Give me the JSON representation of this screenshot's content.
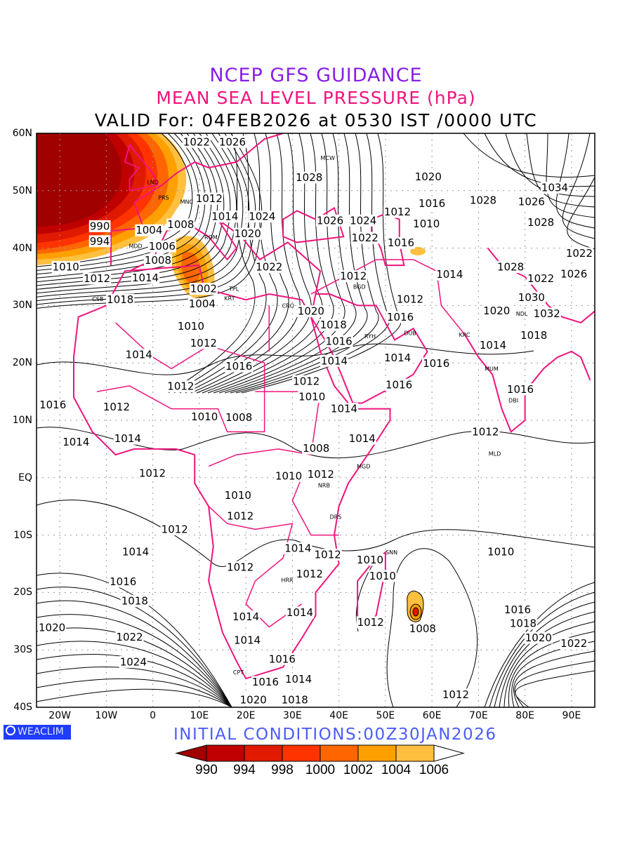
{
  "titles": {
    "line1": "NCEP GFS GUIDANCE",
    "line2": "MEAN SEA LEVEL PRESSURE (hPa)",
    "line3": "VALID For: 04FEB2026 at 0530 IST /0000 UTC"
  },
  "axes": {
    "lat_labels": [
      "60N",
      "50N",
      "40N",
      "30N",
      "20N",
      "10N",
      "EQ",
      "10S",
      "20S",
      "30S",
      "40S"
    ],
    "lon_labels": [
      "20W",
      "10W",
      "0",
      "10E",
      "20E",
      "30E",
      "40E",
      "50E",
      "60E",
      "70E",
      "80E",
      "90E"
    ],
    "lon_range": [
      -25,
      95
    ],
    "lat_range": [
      -40,
      60
    ]
  },
  "logo": "WEACLIM",
  "initial_conditions": "INITIAL  CONDITIONS:00Z30JAN2026",
  "colorbar": {
    "labels": [
      "990",
      "994",
      "998",
      "1000",
      "1002",
      "1004",
      "1006"
    ],
    "colors": [
      "#a00000",
      "#c00000",
      "#e01a00",
      "#ff3300",
      "#ff6600",
      "#ffa000",
      "#ffc040",
      "#ffffff"
    ]
  },
  "colors": {
    "coast": "#f0147d",
    "contour": "#000000",
    "grid": "#999999"
  },
  "contour_labels": [
    [
      "1022",
      9.4,
      58.5
    ],
    [
      "1026",
      17.1,
      58.5
    ],
    [
      "1028",
      33.6,
      52.3
    ],
    [
      "1020",
      59.2,
      52.4
    ],
    [
      "1016",
      60,
      47.8
    ],
    [
      "1012",
      54.7,
      46.3
    ],
    [
      "1010",
      56.7,
      44.2
    ],
    [
      "1034",
      86.4,
      50.5
    ],
    [
      "1028",
      71,
      48.3
    ],
    [
      "1026",
      81.4,
      48.1
    ],
    [
      "1028",
      83.4,
      44.5
    ],
    [
      "1026",
      38.1,
      44.8
    ],
    [
      "1024",
      43.1,
      44.8
    ],
    [
      "1022",
      45.6,
      43
    ],
    [
      "1016",
      49.1,
      40.9
    ],
    [
      "1024",
      23.5,
      45.5
    ],
    [
      "1020",
      20.4,
      42.5
    ],
    [
      "1022",
      25,
      36.7
    ],
    [
      "1014",
      15.5,
      45.5
    ],
    [
      "1012",
      12.1,
      47.4
    ],
    [
      "1008",
      6,
      44.1
    ],
    [
      "1006",
      2,
      40.3
    ],
    [
      "1004",
      -0.8,
      43.1
    ],
    [
      "1008",
      1.1,
      37.9
    ],
    [
      "994",
      -11.4,
      41.2
    ],
    [
      "990",
      -11.4,
      42.6
    ],
    [
      "1010",
      -18.7,
      36.7
    ],
    [
      "1012",
      -12,
      34.7
    ],
    [
      "1014",
      -1.6,
      34.8
    ],
    [
      "1018",
      -7,
      31
    ],
    [
      "1002",
      10.9,
      32.9
    ],
    [
      "1004",
      10.6,
      31.5
    ],
    [
      "1020",
      34,
      29
    ],
    [
      "1018",
      38.8,
      26.6
    ],
    [
      "1016",
      40,
      25
    ],
    [
      "1014",
      39,
      22.8
    ],
    [
      "1012",
      43.1,
      35.1
    ],
    [
      "1012",
      55.3,
      31.1
    ],
    [
      "1016",
      53.2,
      29.2
    ],
    [
      "1014",
      63.8,
      35.4
    ],
    [
      "1028",
      76.9,
      36.7
    ],
    [
      "1022",
      83.4,
      34.7
    ],
    [
      "1030",
      81.4,
      31.4
    ],
    [
      "1032",
      84.7,
      29.8
    ],
    [
      "1022",
      91.7,
      39.1
    ],
    [
      "1026",
      90.5,
      35.5
    ],
    [
      "1020",
      73.9,
      29.1
    ],
    [
      "1018",
      81.9,
      24.8
    ],
    [
      "1014",
      73.1,
      23.1
    ],
    [
      "1010",
      8.2,
      26.4
    ],
    [
      "1012",
      10.9,
      24.7
    ],
    [
      "1014",
      -3,
      21.4
    ],
    [
      "1016",
      18.5,
      19.4
    ],
    [
      "1014",
      52.6,
      20.9
    ],
    [
      "1016",
      58.8,
      19.9
    ],
    [
      "1016",
      52.9,
      16.2
    ],
    [
      "1012",
      33,
      16.8
    ],
    [
      "1010",
      34.2,
      15.3
    ],
    [
      "1012",
      6,
      15.9
    ],
    [
      "1016",
      -21.5,
      12.7
    ],
    [
      "1012",
      -7.8,
      12.3
    ],
    [
      "1010",
      11.1,
      10.6
    ],
    [
      "1008",
      18.5,
      10.5
    ],
    [
      "1014",
      39,
      12
    ],
    [
      "1014",
      45,
      6.8
    ],
    [
      "1014",
      -16.5,
      6.2
    ],
    [
      "1014",
      -5.4,
      6.8
    ],
    [
      "1008",
      35.1,
      5.1
    ],
    [
      "1012",
      71.5,
      8
    ],
    [
      "1016",
      79,
      15.4
    ],
    [
      "1012",
      -0.1,
      0.8
    ],
    [
      "1010",
      29.2,
      0.3
    ],
    [
      "1012",
      36.1,
      0.6
    ],
    [
      "1010",
      18.3,
      -3.1
    ],
    [
      "1012",
      18.8,
      -6.7
    ],
    [
      "1012",
      4.7,
      -9
    ],
    [
      "1014",
      -3.7,
      -12.9
    ],
    [
      "1014",
      31.2,
      -12.3
    ],
    [
      "1012",
      37.6,
      -13.4
    ],
    [
      "1010",
      46.7,
      -14.3
    ],
    [
      "1010",
      49.4,
      -15.9
    ],
    [
      "1010",
      74.8,
      -12.9
    ],
    [
      "1012",
      18.8,
      -15.6
    ],
    [
      "1012",
      33.7,
      -16.8
    ],
    [
      "1016",
      -6.4,
      -18.1
    ],
    [
      "1018",
      -3.9,
      -21.5
    ],
    [
      "1020",
      -21.7,
      -26.1
    ],
    [
      "1022",
      -5,
      -27.8
    ],
    [
      "1024",
      -4.2,
      -32.1
    ],
    [
      "1014",
      20,
      -24.2
    ],
    [
      "1014",
      20.3,
      -28.3
    ],
    [
      "1014",
      31.6,
      -23.5
    ],
    [
      "1016",
      27.8,
      -31.6
    ],
    [
      "1016",
      24.2,
      -35.6
    ],
    [
      "1014",
      29.2,
      -35.1
    ],
    [
      "1012",
      46.8,
      -25.2
    ],
    [
      "1008",
      58,
      -26.3
    ],
    [
      "1016",
      78.4,
      -23
    ],
    [
      "1018",
      79.6,
      -25.4
    ],
    [
      "1020",
      82.9,
      -27.9
    ],
    [
      "1022",
      88.4,
      -28.9
    ],
    [
      "1012",
      65.1,
      -37.8
    ],
    [
      "1020",
      21.6,
      -39.5
    ],
    [
      "1018",
      30.5,
      -39.9
    ]
  ],
  "stations": [
    [
      "MCW",
      37.6,
      55.7
    ],
    [
      "LND",
      0,
      51.5
    ],
    [
      "PRS",
      2.3,
      48.8
    ],
    [
      "MNC",
      11.5,
      48.1
    ],
    [
      "ROM",
      12.5,
      41.9
    ],
    [
      "MDD",
      -3.7,
      40.4
    ],
    [
      "CSB",
      -7.6,
      33.6
    ],
    [
      "TPL",
      13.2,
      32.9
    ],
    [
      "KRT",
      16.5,
      32.5
    ],
    [
      "CRO",
      31.2,
      30
    ],
    [
      "RYH",
      46.7,
      24.7
    ],
    [
      "BGD",
      44.4,
      33.3
    ],
    [
      "DUB",
      55.3,
      25.2
    ],
    [
      "KRC",
      67,
      24.9
    ],
    [
      "MUM",
      72.8,
      19
    ],
    [
      "DBI",
      77.5,
      13.5
    ],
    [
      "MLD",
      73.5,
      4.2
    ],
    [
      "MGD",
      45.3,
      2
    ],
    [
      "NRB",
      36.8,
      -1.3
    ],
    [
      "DRS",
      39.3,
      -6.8
    ],
    [
      "SNN",
      49.2,
      -13
    ],
    [
      "HRR",
      31,
      -17.8
    ],
    [
      "CPT",
      18.4,
      -33.9
    ],
    [
      "NDL",
      77.2,
      28.6
    ]
  ]
}
